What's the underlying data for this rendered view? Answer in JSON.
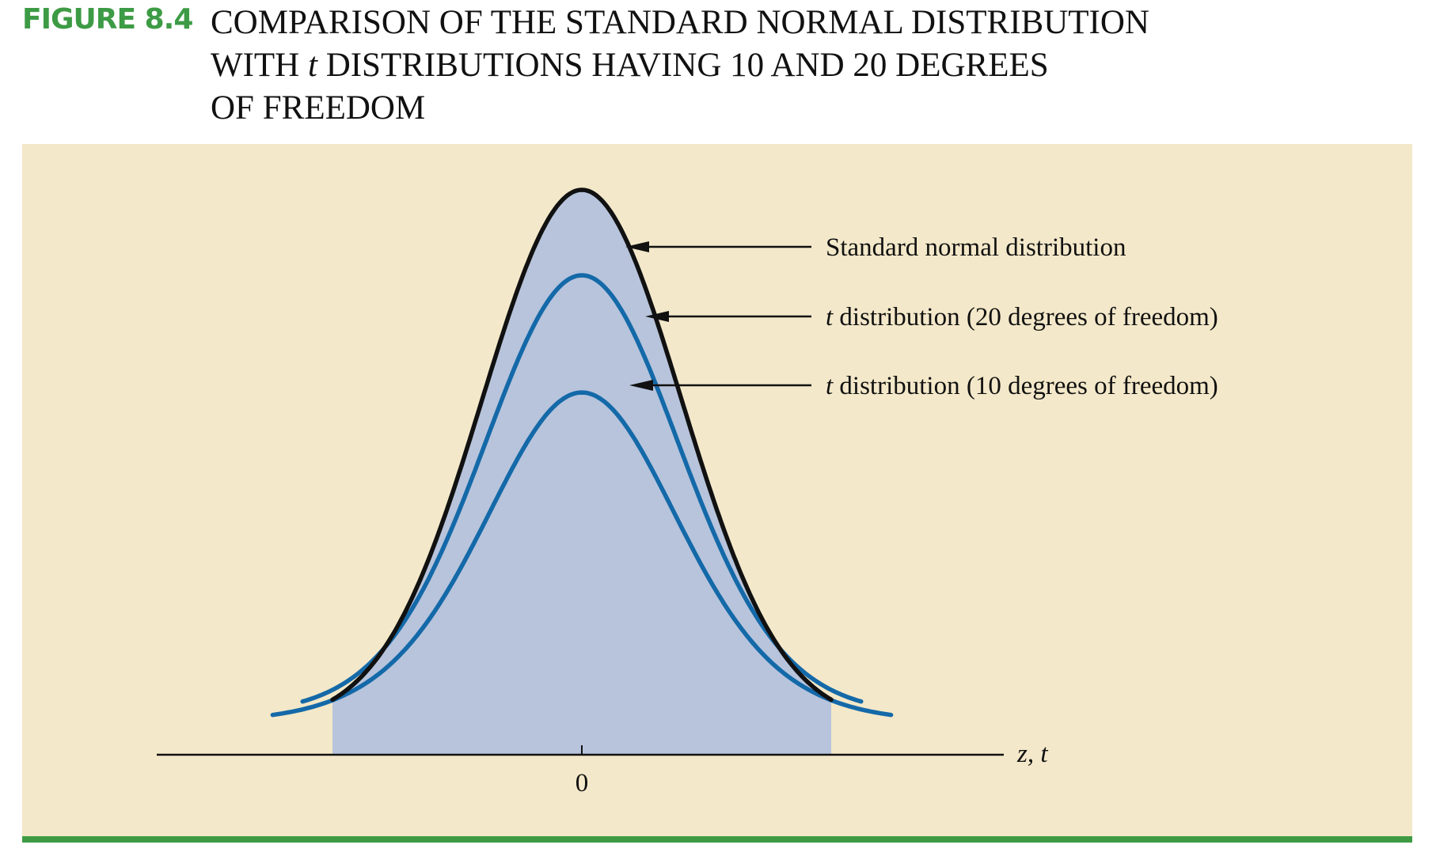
{
  "figure": {
    "label": "FIGURE 8.4",
    "title_lines": [
      {
        "pre": "COMPARISON OF THE STANDARD NORMAL DISTRIBUTION",
        "it": "",
        "post": ""
      },
      {
        "pre": "WITH ",
        "it": "t",
        "post": " DISTRIBUTIONS HAVING 10 AND 20 DEGREES"
      },
      {
        "pre": "OF FREEDOM",
        "it": "",
        "post": ""
      }
    ]
  },
  "colors": {
    "label_green": "#3d9b45",
    "rule_green": "#3f9a43",
    "panel_bg": "#f3e8c9",
    "fill_blue": "#b7c4dc",
    "normal_line": "#111111",
    "t_line": "#1469a8"
  },
  "chart_data": {
    "type": "line",
    "x_axis_label": {
      "it": "z, t"
    },
    "x_tick_labels": [
      "0"
    ],
    "xlim": [
      -3,
      3
    ],
    "series": [
      {
        "id": "normal",
        "dist": "normal",
        "df": null,
        "label": {
          "it": "",
          "text": "Standard normal distribution"
        },
        "filled": true
      },
      {
        "id": "t20",
        "dist": "t",
        "df": 20,
        "label": {
          "it": "t",
          "text": " distribution (20 degrees of freedom)"
        },
        "filled": false
      },
      {
        "id": "t10",
        "dist": "t",
        "df": 10,
        "label": {
          "it": "t",
          "text": " distribution (10 degrees of freedom)"
        },
        "filled": false
      }
    ]
  }
}
